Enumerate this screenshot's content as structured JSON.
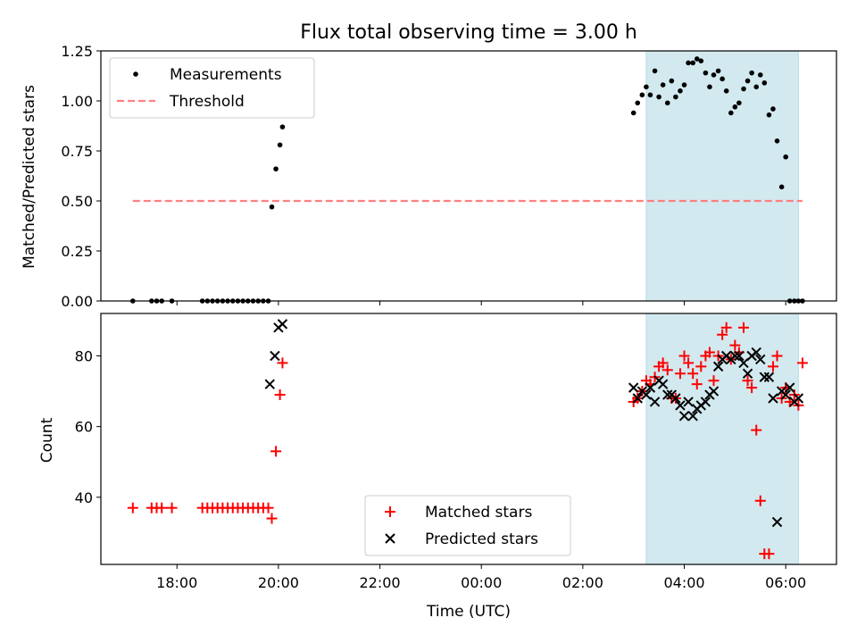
{
  "chart_data": [
    {
      "type": "scatter",
      "title": "Flux total observing time = 3.00 h",
      "xlabel": "",
      "ylabel": "Matched/Predicted stars",
      "ylim": [
        0,
        1.25
      ],
      "yticks": [
        "0.00",
        "0.25",
        "0.50",
        "0.75",
        "1.00",
        "1.25"
      ],
      "x_axis": "shared time axis (hours, 16.5 = 16:30 UTC previous day ... 31.0 = 07:00 UTC)",
      "xlim": [
        16.5,
        31.0
      ],
      "shaded_region": {
        "x": [
          27.25,
          30.25
        ],
        "color": "#d2e9ef"
      },
      "series": [
        {
          "name": "Measurements",
          "color": "#000000",
          "marker": "dot",
          "x": [
            17.13,
            17.5,
            17.6,
            17.7,
            17.9,
            18.5,
            18.6,
            18.7,
            18.8,
            18.9,
            19.0,
            19.1,
            19.2,
            19.3,
            19.4,
            19.5,
            19.6,
            19.7,
            19.8,
            19.87,
            19.95,
            20.03,
            20.08,
            27.0,
            27.08,
            27.17,
            27.25,
            27.33,
            27.42,
            27.5,
            27.58,
            27.67,
            27.75,
            27.83,
            27.92,
            28.0,
            28.08,
            28.17,
            28.25,
            28.33,
            28.42,
            28.5,
            28.58,
            28.67,
            28.75,
            28.83,
            28.92,
            29.0,
            29.08,
            29.17,
            29.25,
            29.33,
            29.42,
            29.5,
            29.58,
            29.67,
            29.75,
            29.83,
            29.92,
            30.0,
            30.08,
            30.17,
            30.25,
            30.33
          ],
          "y": [
            0.0,
            0.0,
            0.0,
            0.0,
            0.0,
            0.0,
            0.0,
            0.0,
            0.0,
            0.0,
            0.0,
            0.0,
            0.0,
            0.0,
            0.0,
            0.0,
            0.0,
            0.0,
            0.0,
            0.47,
            0.66,
            0.78,
            0.87,
            0.94,
            0.99,
            1.03,
            1.07,
            1.03,
            1.15,
            1.02,
            1.08,
            0.99,
            1.1,
            1.02,
            1.05,
            1.08,
            1.19,
            1.19,
            1.21,
            1.2,
            1.14,
            1.07,
            1.13,
            1.15,
            1.11,
            1.05,
            0.94,
            0.97,
            0.99,
            1.06,
            1.1,
            1.14,
            1.07,
            1.13,
            1.09,
            0.93,
            0.96,
            0.8,
            0.57,
            0.72,
            0.0,
            0.0,
            0.0,
            0.0
          ]
        },
        {
          "name": "Threshold",
          "color": "#ff8080",
          "style": "dashed",
          "x": [
            17.13,
            30.33
          ],
          "y": [
            0.5,
            0.5
          ]
        }
      ],
      "legend": "top-left"
    },
    {
      "type": "scatter",
      "title": "",
      "xlabel": "Time (UTC)",
      "ylabel": "Count",
      "ylim": [
        21,
        92
      ],
      "yticks": [
        "40",
        "60",
        "80"
      ],
      "xlim": [
        16.5,
        31.0
      ],
      "xtick_values": [
        18,
        20,
        22,
        24,
        26,
        28,
        30
      ],
      "xticks": [
        "18:00",
        "20:00",
        "22:00",
        "00:00",
        "02:00",
        "04:00",
        "06:00"
      ],
      "shaded_region": {
        "x": [
          27.25,
          30.25
        ],
        "color": "#d2e9ef"
      },
      "series": [
        {
          "name": "Matched stars",
          "color": "#ff0000",
          "marker": "plus",
          "x": [
            17.13,
            17.5,
            17.6,
            17.7,
            17.9,
            18.5,
            18.6,
            18.7,
            18.8,
            18.9,
            19.0,
            19.1,
            19.2,
            19.3,
            19.4,
            19.5,
            19.6,
            19.7,
            19.8,
            19.87,
            19.95,
            20.03,
            20.08,
            27.0,
            27.08,
            27.17,
            27.25,
            27.33,
            27.42,
            27.5,
            27.58,
            27.67,
            27.75,
            27.83,
            27.92,
            28.0,
            28.08,
            28.17,
            28.25,
            28.33,
            28.42,
            28.5,
            28.58,
            28.67,
            28.75,
            28.83,
            28.92,
            29.0,
            29.08,
            29.17,
            29.25,
            29.33,
            29.42,
            29.5,
            29.58,
            29.67,
            29.75,
            29.83,
            29.92,
            30.0,
            30.08,
            30.17,
            30.25,
            30.33
          ],
          "y": [
            37,
            37,
            37,
            37,
            37,
            37,
            37,
            37,
            37,
            37,
            37,
            37,
            37,
            37,
            37,
            37,
            37,
            37,
            37,
            34,
            53,
            69,
            78,
            67,
            68,
            70,
            73,
            72,
            74,
            77,
            78,
            76,
            68,
            68,
            75,
            80,
            78,
            75,
            72,
            77,
            80,
            81,
            73,
            80,
            86,
            88,
            79,
            83,
            81,
            88,
            73,
            71,
            59,
            39,
            24,
            24,
            77,
            80,
            68,
            71,
            67,
            69,
            66,
            78
          ],
          "x_sorted": true
        },
        {
          "name": "Predicted stars",
          "color": "#000000",
          "marker": "x",
          "x": [
            19.83,
            19.93,
            20.0,
            20.08,
            27.0,
            27.08,
            27.17,
            27.25,
            27.33,
            27.42,
            27.5,
            27.58,
            27.67,
            27.75,
            27.83,
            27.92,
            28.0,
            28.08,
            28.17,
            28.25,
            28.33,
            28.42,
            28.5,
            28.58,
            28.67,
            28.75,
            28.83,
            28.92,
            29.0,
            29.08,
            29.17,
            29.25,
            29.33,
            29.42,
            29.5,
            29.58,
            29.67,
            29.75,
            29.83,
            29.92,
            30.0,
            30.08,
            30.17,
            30.25
          ],
          "y": [
            72,
            80,
            88,
            89,
            71,
            68,
            70,
            69,
            71,
            67,
            73,
            72,
            69,
            69,
            68,
            66,
            63,
            67,
            63,
            65,
            66,
            67,
            69,
            70,
            77,
            79,
            80,
            79,
            80,
            80,
            78,
            75,
            80,
            81,
            79,
            74,
            74,
            68,
            33,
            70,
            69,
            71,
            67,
            68
          ]
        }
      ],
      "legend": "bottom-center"
    }
  ]
}
